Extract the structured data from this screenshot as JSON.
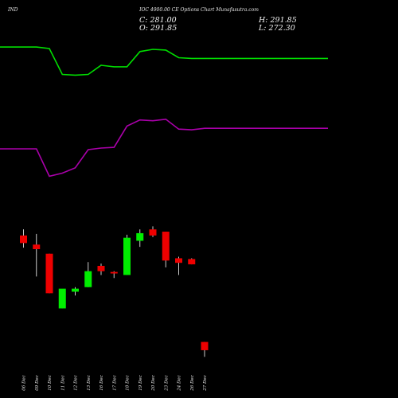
{
  "header": {
    "symbol": "IND",
    "title": "IOC 4900.00 CE Options Chart Munafasutra.com"
  },
  "ohlc": {
    "close_label": "C: 281.00",
    "open_label": "O: 291.85",
    "high_label": "H: 291.85",
    "low_label": "L: 272.30"
  },
  "colors": {
    "background": "#000000",
    "up_candle": "#00ee00",
    "down_candle": "#ee0000",
    "upper_band": "#00dd00",
    "lower_band": "#aa00aa",
    "text": "#e8e8e8"
  },
  "chart_data": {
    "type": "candlestick",
    "ylim": [
      260,
      700
    ],
    "categories": [
      "06 Dec",
      "09 Dec",
      "10 Dec",
      "11 Dec",
      "12 Dec",
      "13 Dec",
      "16 Dec",
      "17 Dec",
      "18 Dec",
      "19 Dec",
      "20 Dec",
      "23 Dec",
      "24 Dec",
      "26 Dec",
      "27 Dec"
    ],
    "candles": [
      {
        "open": 432,
        "high": 440,
        "low": 416,
        "close": 422
      },
      {
        "open": 420,
        "high": 434,
        "low": 378,
        "close": 414
      },
      {
        "open": 408,
        "high": 408,
        "low": 356,
        "close": 356
      },
      {
        "open": 336,
        "high": 360,
        "low": 336,
        "close": 362
      },
      {
        "open": 358,
        "high": 364,
        "low": 353,
        "close": 362
      },
      {
        "open": 364,
        "high": 397,
        "low": 364,
        "close": 385
      },
      {
        "open": 392,
        "high": 395,
        "low": 380,
        "close": 385
      },
      {
        "open": 384,
        "high": 385,
        "low": 376,
        "close": 382
      },
      {
        "open": 380,
        "high": 433,
        "low": 380,
        "close": 429
      },
      {
        "open": 425,
        "high": 440,
        "low": 417,
        "close": 435
      },
      {
        "open": 440,
        "high": 444,
        "low": 430,
        "close": 432
      },
      {
        "open": 437,
        "high": 437,
        "low": 390,
        "close": 399
      },
      {
        "open": 402,
        "high": 404,
        "low": 380,
        "close": 396
      },
      {
        "open": 401,
        "high": 402,
        "low": 394,
        "close": 394
      },
      {
        "open": 291.85,
        "high": 291.85,
        "low": 272.3,
        "close": 281
      }
    ],
    "series": [
      {
        "values": [
          680,
          680,
          678,
          644,
          643,
          644,
          656,
          654,
          654,
          674,
          677,
          676,
          666,
          665,
          665
        ]
      },
      {
        "values": [
          546,
          546,
          510,
          514,
          521,
          545,
          547,
          548,
          576,
          584,
          583,
          585,
          572,
          571,
          573
        ]
      }
    ]
  }
}
